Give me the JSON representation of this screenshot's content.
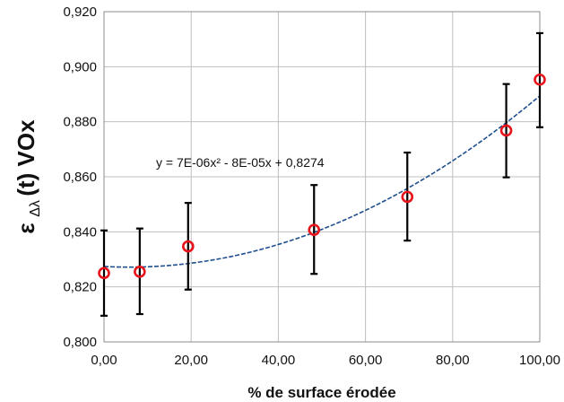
{
  "chart_data": {
    "type": "scatter",
    "xlabel": "% de surface érodée",
    "ylabel": {
      "symbol": "ε",
      "subscript": "Δλ",
      "rest": "(t) VOx"
    },
    "xlim": [
      0,
      100
    ],
    "ylim": [
      0.8,
      0.92
    ],
    "x_ticks": [
      0,
      20,
      40,
      60,
      80,
      100
    ],
    "x_tick_labels": [
      "0,00",
      "20,00",
      "40,00",
      "60,00",
      "80,00",
      "100,00"
    ],
    "y_ticks": [
      0.8,
      0.82,
      0.84,
      0.86,
      0.88,
      0.9,
      0.92
    ],
    "y_tick_labels": [
      "0,800",
      "0,820",
      "0,840",
      "0,860",
      "0,880",
      "0,900",
      "0,920"
    ],
    "grid": true,
    "legend": "none",
    "series": [
      {
        "marker": "open-circle",
        "color": "#e8141b",
        "error_bar_color": "#000000",
        "points": [
          {
            "x": 0,
            "y": 0.825,
            "y_low": 0.8095,
            "y_high": 0.8405
          },
          {
            "x": 8.2,
            "y": 0.8255,
            "y_low": 0.8101,
            "y_high": 0.8412
          },
          {
            "x": 19.3,
            "y": 0.8347,
            "y_low": 0.819,
            "y_high": 0.8505
          },
          {
            "x": 48.2,
            "y": 0.8407,
            "y_low": 0.8247,
            "y_high": 0.857
          },
          {
            "x": 69.6,
            "y": 0.8527,
            "y_low": 0.8368,
            "y_high": 0.8688
          },
          {
            "x": 92.3,
            "y": 0.8768,
            "y_low": 0.8598,
            "y_high": 0.8937
          },
          {
            "x": 100,
            "y": 0.8953,
            "y_low": 0.878,
            "y_high": 0.9122
          }
        ]
      }
    ],
    "trendline": {
      "type": "polynomial",
      "color": "#1f4f8f",
      "style": "dashed",
      "coefficients": {
        "a": 7e-06,
        "b": -8e-05,
        "c": 0.8274
      }
    },
    "equation_label": "y = 7E-06x² - 8E-05x + 0,8274"
  }
}
